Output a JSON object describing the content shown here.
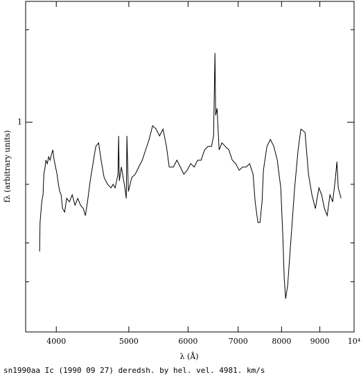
{
  "chart_data": {
    "type": "line",
    "xlabel": "λ (Å)",
    "ylabel": "fλ (arbitrary units)",
    "caption": "sn1990aa Ic (1990 09 27) deredsh. by hel. vel.  4981. km/s",
    "xscale": "log",
    "yscale": "log",
    "xlim": [
      3640,
      10000
    ],
    "ylim": [
      0.3,
      2
    ],
    "xticks": [
      4000,
      5000,
      6000,
      7000,
      8000,
      9000,
      {
        "value": 10000,
        "label": "10⁴"
      }
    ],
    "yticks": [
      1
    ],
    "yminor_ticks": [
      0.4,
      0.5,
      0.7,
      1.7
    ],
    "x": [
      3800,
      3805,
      3825,
      3840,
      3850,
      3865,
      3873,
      3891,
      3907,
      3924,
      3941,
      3958,
      3974,
      3991,
      4009,
      4026,
      4043,
      4060,
      4078,
      4104,
      4130,
      4165,
      4201,
      4237,
      4273,
      4310,
      4347,
      4375,
      4403,
      4440,
      4478,
      4517,
      4556,
      4595,
      4634,
      4684,
      4734,
      4764,
      4794,
      4836,
      4846,
      4856,
      4887,
      4940,
      4961,
      4971,
      4993,
      5046,
      5101,
      5155,
      5211,
      5266,
      5323,
      5380,
      5438,
      5496,
      5555,
      5614,
      5662,
      5735,
      5797,
      5859,
      5922,
      5985,
      6049,
      6114,
      6180,
      6246,
      6313,
      6380,
      6449,
      6490,
      6518,
      6532,
      6560,
      6602,
      6659,
      6730,
      6802,
      6875,
      6948,
      7023,
      7098,
      7174,
      7251,
      7329,
      7376,
      7439,
      7486,
      7534,
      7566,
      7648,
      7730,
      7812,
      7896,
      7981,
      8032,
      8066,
      8101,
      8153,
      8240,
      8329,
      8418,
      8490,
      8599,
      8691,
      8784,
      8878,
      8974,
      9050,
      9128,
      9206,
      9285,
      9364,
      9444,
      9485,
      9525,
      9607
    ],
    "series": [
      {
        "name": "sn1990aa",
        "color": "#000000",
        "values": [
          0.476,
          0.562,
          0.633,
          0.659,
          0.742,
          0.773,
          0.804,
          0.788,
          0.82,
          0.804,
          0.83,
          0.853,
          0.804,
          0.773,
          0.742,
          0.7,
          0.672,
          0.659,
          0.609,
          0.597,
          0.646,
          0.633,
          0.659,
          0.621,
          0.646,
          0.621,
          0.609,
          0.585,
          0.633,
          0.714,
          0.788,
          0.87,
          0.888,
          0.797,
          0.728,
          0.7,
          0.686,
          0.7,
          0.686,
          0.742,
          0.924,
          0.714,
          0.773,
          0.686,
          0.646,
          0.924,
          0.672,
          0.728,
          0.742,
          0.773,
          0.804,
          0.853,
          0.906,
          0.98,
          0.961,
          0.924,
          0.961,
          0.87,
          0.773,
          0.773,
          0.804,
          0.773,
          0.742,
          0.759,
          0.788,
          0.773,
          0.804,
          0.804,
          0.853,
          0.87,
          0.87,
          0.924,
          1.487,
          1.04,
          1.083,
          0.853,
          0.888,
          0.87,
          0.853,
          0.804,
          0.788,
          0.759,
          0.773,
          0.773,
          0.788,
          0.742,
          0.633,
          0.562,
          0.562,
          0.633,
          0.759,
          0.87,
          0.906,
          0.87,
          0.804,
          0.686,
          0.519,
          0.409,
          0.363,
          0.393,
          0.519,
          0.686,
          0.853,
          0.961,
          0.943,
          0.742,
          0.659,
          0.609,
          0.686,
          0.659,
          0.609,
          0.585,
          0.659,
          0.633,
          0.728,
          0.797,
          0.686,
          0.646
        ]
      }
    ]
  }
}
